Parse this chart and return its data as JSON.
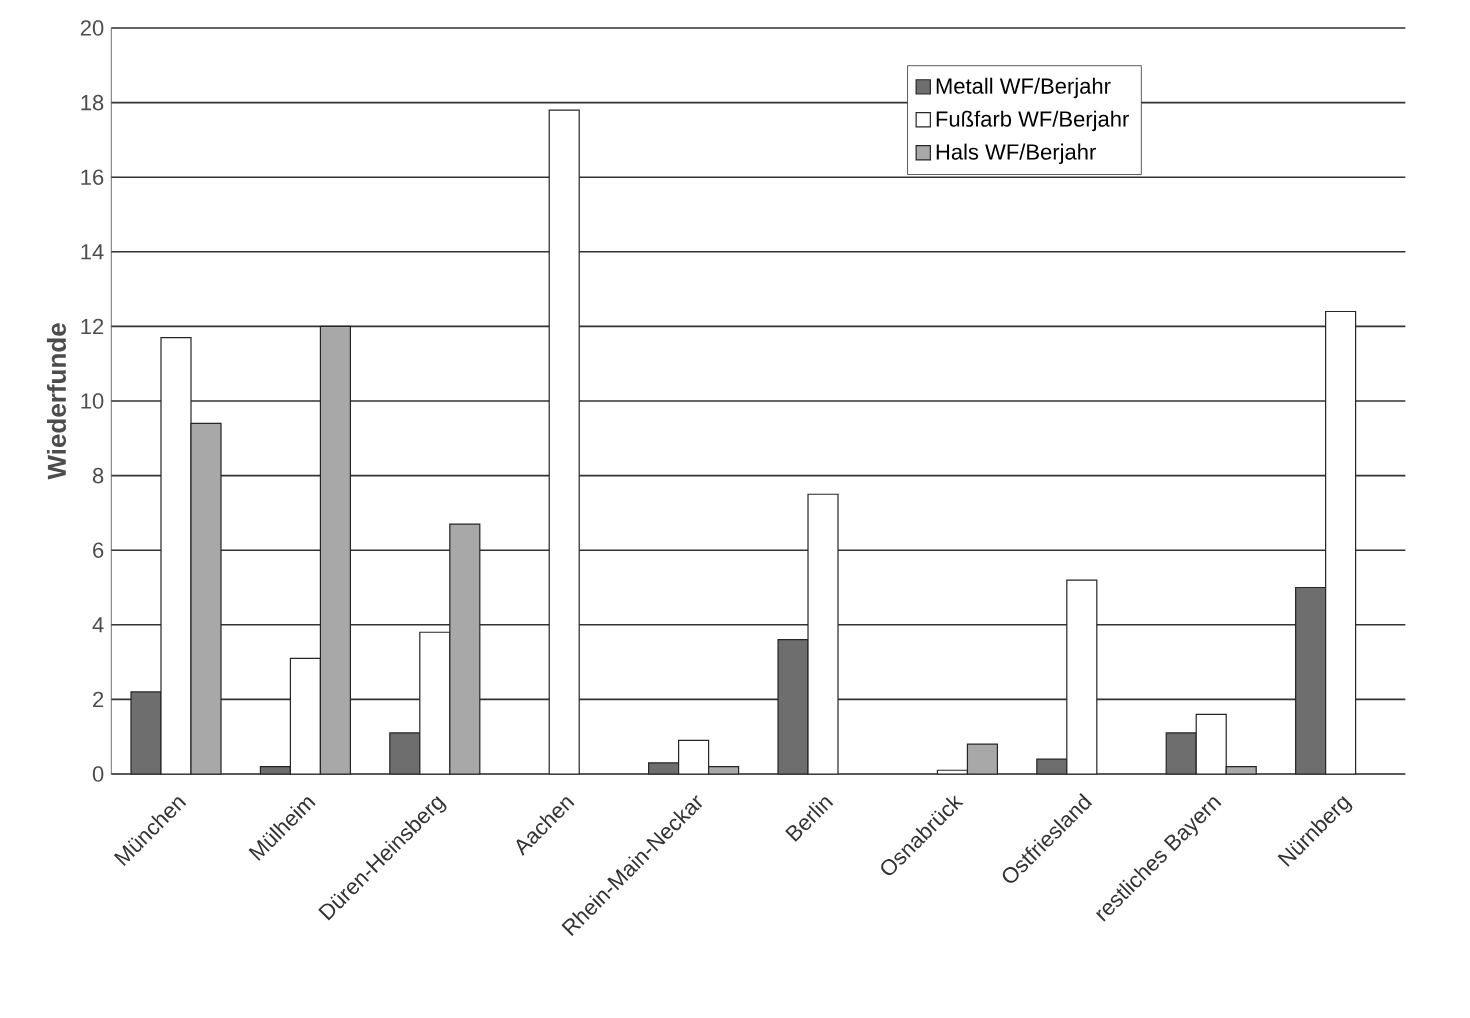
{
  "chart_data": {
    "type": "bar",
    "ylabel": "Wiederfunde",
    "categories": [
      "München",
      "Mülheim",
      "Düren-Heinsberg",
      "Aachen",
      "Rhein-Main-Neckar",
      "Berlin",
      "Osnabrück",
      "Ostfriesland",
      "restliches Bayern",
      "Nürnberg"
    ],
    "series": [
      {
        "name": "Metall WF/Berjahr",
        "color": "#6e6e6e",
        "values": [
          2.2,
          0.2,
          1.1,
          null,
          0.3,
          3.6,
          null,
          0.4,
          1.1,
          5.0
        ]
      },
      {
        "name": "Fußfarb WF/Berjahr",
        "color": "#ffffff",
        "values": [
          11.7,
          3.1,
          3.8,
          17.8,
          0.9,
          7.5,
          0.1,
          5.2,
          1.6,
          12.4
        ]
      },
      {
        "name": "Hals WF/Berjahr",
        "color": "#a8a8a8",
        "values": [
          9.4,
          12.0,
          6.7,
          null,
          0.2,
          null,
          0.8,
          null,
          0.2,
          null
        ]
      }
    ],
    "ylim": [
      0,
      20
    ],
    "yticks": [
      0,
      2,
      4,
      6,
      8,
      10,
      12,
      14,
      16,
      18,
      20
    ],
    "grid": "y",
    "legend": "top right"
  }
}
